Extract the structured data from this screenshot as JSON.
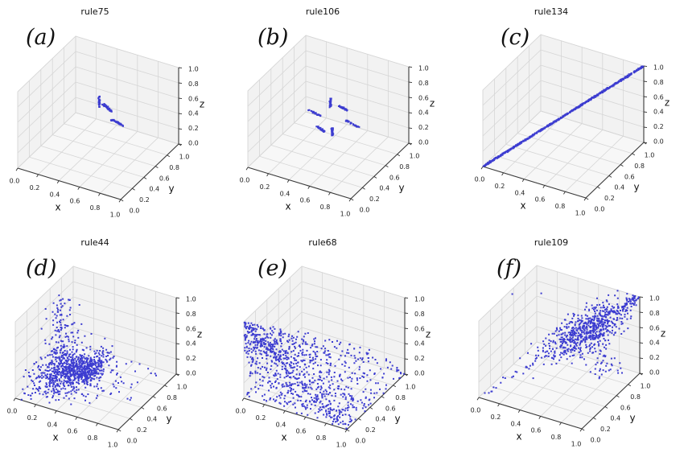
{
  "figure": {
    "background": "#ffffff",
    "marker_color": "#2828cc",
    "pane_color": "#f2f2f2",
    "floor_color": "#f7f7f7",
    "grid_color": "#d6d6d6",
    "spine_color": "#3a3a3a",
    "tick_font_size": 8,
    "rows": 2,
    "cols": 3
  },
  "chart_data": [
    {
      "type": "scatter",
      "subtype": "scatter3d",
      "panel_label": "(a)",
      "title": "rule75",
      "xlabel": "x",
      "ylabel": "y",
      "zlabel": "z",
      "axis_range": [
        0,
        1
      ],
      "tick_values": [
        0,
        0.2,
        0.4,
        0.6,
        0.8,
        1.0
      ],
      "tick_labels": [
        "0.0",
        "0.2",
        "0.4",
        "0.6",
        "0.8",
        "1.0"
      ],
      "legend": null,
      "grid": true,
      "marker_color": "#2828cc",
      "data": {
        "parts": [
          {
            "type": "segment",
            "n": 42,
            "from": [
              0.51,
              0.5,
              0.64
            ],
            "to": [
              0.51,
              0.5,
              0.78
            ],
            "jitter": 0.004
          },
          {
            "type": "segment",
            "n": 42,
            "from": [
              0.55,
              0.5,
              0.7
            ],
            "to": [
              0.63,
              0.5,
              0.64
            ],
            "jitter": 0.004
          },
          {
            "type": "segment",
            "n": 42,
            "from": [
              0.55,
              0.62,
              0.42
            ],
            "to": [
              0.68,
              0.62,
              0.38
            ],
            "jitter": 0.004
          }
        ]
      }
    },
    {
      "type": "scatter",
      "subtype": "scatter3d",
      "panel_label": "(b)",
      "title": "rule106",
      "xlabel": "x",
      "ylabel": "y",
      "zlabel": "z",
      "axis_range": [
        0,
        1
      ],
      "tick_values": [
        0,
        0.2,
        0.4,
        0.6,
        0.8,
        1.0
      ],
      "tick_labels": [
        "0.0",
        "0.2",
        "0.4",
        "0.6",
        "0.8",
        "1.0"
      ],
      "legend": null,
      "grid": true,
      "marker_color": "#2828cc",
      "data": {
        "parts": [
          {
            "type": "segment",
            "n": 36,
            "from": [
              0.52,
              0.5,
              0.64
            ],
            "to": [
              0.52,
              0.5,
              0.75
            ],
            "jitter": 0.004
          },
          {
            "type": "segment",
            "n": 36,
            "from": [
              0.58,
              0.54,
              0.65
            ],
            "to": [
              0.66,
              0.54,
              0.62
            ],
            "jitter": 0.004
          },
          {
            "type": "segment",
            "n": 36,
            "from": [
              0.3,
              0.5,
              0.52
            ],
            "to": [
              0.43,
              0.5,
              0.48
            ],
            "jitter": 0.004
          },
          {
            "type": "segment",
            "n": 36,
            "from": [
              0.64,
              0.55,
              0.48
            ],
            "to": [
              0.77,
              0.55,
              0.44
            ],
            "jitter": 0.004
          },
          {
            "type": "segment",
            "n": 36,
            "from": [
              0.42,
              0.45,
              0.38
            ],
            "to": [
              0.49,
              0.45,
              0.34
            ],
            "jitter": 0.004
          },
          {
            "type": "segment",
            "n": 36,
            "from": [
              0.54,
              0.5,
              0.27
            ],
            "to": [
              0.54,
              0.5,
              0.37
            ],
            "jitter": 0.004
          }
        ]
      }
    },
    {
      "type": "scatter",
      "subtype": "scatter3d",
      "panel_label": "(c)",
      "title": "rule134",
      "xlabel": "x",
      "ylabel": "y",
      "zlabel": "z",
      "axis_range": [
        0,
        1
      ],
      "tick_values": [
        0,
        0.2,
        0.4,
        0.6,
        0.8,
        1.0
      ],
      "tick_labels": [
        "0.0",
        "0.2",
        "0.4",
        "0.6",
        "0.8",
        "1.0"
      ],
      "legend": null,
      "grid": true,
      "marker_color": "#2828cc",
      "data": {
        "parts": [
          {
            "type": "segment",
            "n": 800,
            "from": [
              0,
              0,
              0
            ],
            "to": [
              1,
              1,
              1
            ],
            "jitter": 0.0035
          }
        ]
      }
    },
    {
      "type": "scatter",
      "subtype": "scatter3d",
      "panel_label": "(d)",
      "title": "rule44",
      "xlabel": "x",
      "ylabel": "y",
      "zlabel": "z",
      "axis_range": [
        0,
        1
      ],
      "tick_values": [
        0,
        0.2,
        0.4,
        0.6,
        0.8,
        1.0
      ],
      "tick_labels": [
        "0.0",
        "0.2",
        "0.4",
        "0.6",
        "0.8",
        "1.0"
      ],
      "legend": null,
      "grid": true,
      "marker_color": "#2828cc",
      "data": {
        "parts": [
          {
            "type": "gauss",
            "n": 480,
            "center": [
              0.25,
              0.45,
              0.1
            ],
            "sigma": [
              0.15,
              0.22,
              0.09
            ]
          },
          {
            "type": "gauss",
            "n": 320,
            "center": [
              0.33,
              0.63,
              0.07
            ],
            "sigma": [
              0.07,
              0.1,
              0.05
            ]
          },
          {
            "type": "plume",
            "n": 190,
            "x": [
              0.17,
              0.05
            ],
            "y": [
              0.5,
              0.09
            ],
            "zpow": 1.4
          },
          {
            "type": "box",
            "n": 55,
            "min": [
              0.3,
              0.4,
              0.0
            ],
            "max": [
              0.9,
              1.0,
              0.05
            ]
          }
        ]
      }
    },
    {
      "type": "scatter",
      "subtype": "scatter3d",
      "panel_label": "(e)",
      "title": "rule68",
      "xlabel": "x",
      "ylabel": "y",
      "zlabel": "z",
      "axis_range": [
        0,
        1
      ],
      "tick_values": [
        0,
        0.2,
        0.4,
        0.6,
        0.8,
        1.0
      ],
      "tick_labels": [
        "0.0",
        "0.2",
        "0.4",
        "0.6",
        "0.8",
        "1.0"
      ],
      "legend": null,
      "grid": true,
      "marker_color": "#2828cc",
      "data": {
        "parts": [
          {
            "type": "wedge",
            "n": 950,
            "xpow": 1.35,
            "zpow": 1.6,
            "ypow": 2.2,
            "yscale": 1.25,
            "zjitter": 0.015
          }
        ]
      }
    },
    {
      "type": "scatter",
      "subtype": "scatter3d",
      "panel_label": "(f)",
      "title": "rule109",
      "xlabel": "x",
      "ylabel": "y",
      "zlabel": "z",
      "axis_range": [
        0,
        1
      ],
      "tick_values": [
        0,
        0.2,
        0.4,
        0.6,
        0.8,
        1.0
      ],
      "tick_labels": [
        "0.0",
        "0.2",
        "0.4",
        "0.6",
        "0.8",
        "1.0"
      ],
      "legend": null,
      "grid": true,
      "marker_color": "#2828cc",
      "data": {
        "parts": [
          {
            "type": "diag_gauss",
            "n": 620,
            "t": [
              0.66,
              0.1
            ],
            "noise": [
              0.09,
              0.1,
              0.08
            ]
          },
          {
            "type": "diag_gauss",
            "n": 70,
            "t": [
              0.92,
              0.05
            ],
            "noise": [
              0.03,
              0.03,
              0.03
            ]
          },
          {
            "type": "diag_uniform",
            "n": 30,
            "t": [
              0.04,
              0.5
            ],
            "noise": 0.02
          },
          {
            "type": "drip",
            "n": 26,
            "x": 0.72,
            "y": 0.85,
            "zrange": [
              0.0,
              0.52
            ],
            "noise": 0.02
          },
          {
            "type": "box",
            "n": 22,
            "min": [
              0.55,
              0.7,
              0.0
            ],
            "max": [
              0.95,
              1.0,
              0.3
            ]
          },
          {
            "type": "fixed",
            "points": [
              [
                0.0,
                0.57,
                0.94
              ],
              [
                0.1,
                0.9,
                0.75
              ]
            ]
          }
        ]
      }
    }
  ]
}
